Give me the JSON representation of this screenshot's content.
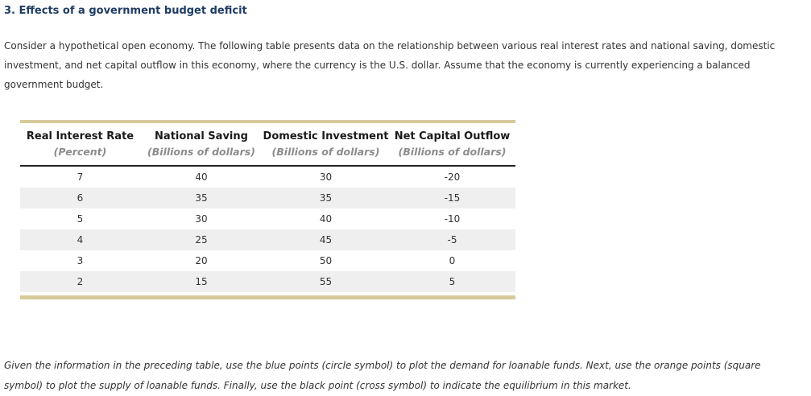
{
  "theme": {
    "title_color": "#1f3c63",
    "table_accent_color": "#d6ca9a",
    "table_stripe_color": "#efefef",
    "text_color": "#333333"
  },
  "title": {
    "text": "3. Effects of a government budget deficit"
  },
  "intro": {
    "text": "Consider a hypothetical open economy. The following table presents data on the relationship between various real interest rates and national saving, domestic investment, and net capital outflow in this economy, where the currency is the U.S. dollar. Assume that the economy is currently experiencing a balanced government budget."
  },
  "table": {
    "columns": [
      {
        "label": "Real Interest Rate",
        "sublabel": "(Percent)"
      },
      {
        "label": "National Saving",
        "sublabel": "(Billions of dollars)"
      },
      {
        "label": "Domestic Investment",
        "sublabel": "(Billions of dollars)"
      },
      {
        "label": "Net Capital Outflow",
        "sublabel": "(Billions of dollars)"
      }
    ],
    "rows": [
      [
        "7",
        "40",
        "30",
        "-20"
      ],
      [
        "6",
        "35",
        "35",
        "-15"
      ],
      [
        "5",
        "30",
        "40",
        "-10"
      ],
      [
        "4",
        "25",
        "45",
        "-5"
      ],
      [
        "3",
        "20",
        "50",
        "0"
      ],
      [
        "2",
        "15",
        "55",
        "5"
      ]
    ]
  },
  "instructions": {
    "text": "Given the information in the preceding table, use the blue points (circle symbol) to plot the demand for loanable funds. Next, use the orange points (square symbol) to plot the supply of loanable funds. Finally, use the black point (cross symbol) to indicate the equilibrium in this market."
  }
}
